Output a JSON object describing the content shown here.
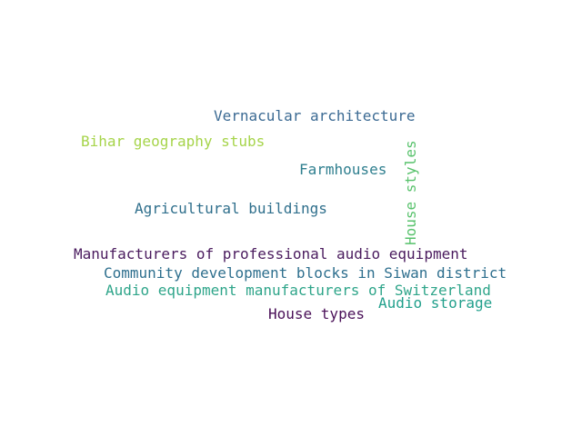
{
  "words": [
    {
      "text": "Vernacular architecture",
      "color": "#3b6a93"
    },
    {
      "text": "Bihar geography stubs",
      "color": "#a6d44a"
    },
    {
      "text": "Farmhouses",
      "color": "#2f7f8f"
    },
    {
      "text": "House styles",
      "color": "#58c26c"
    },
    {
      "text": "Agricultural buildings",
      "color": "#2f6f8c"
    },
    {
      "text": "Manufacturers of professional audio equipment",
      "color": "#4a1b5e"
    },
    {
      "text": "Community development blocks in Siwan district",
      "color": "#2e6f8e"
    },
    {
      "text": "Audio equipment manufacturers of Switzerland",
      "color": "#2fa58a"
    },
    {
      "text": "Audio storage",
      "color": "#22a08c"
    },
    {
      "text": "House types",
      "color": "#4a1058"
    }
  ]
}
